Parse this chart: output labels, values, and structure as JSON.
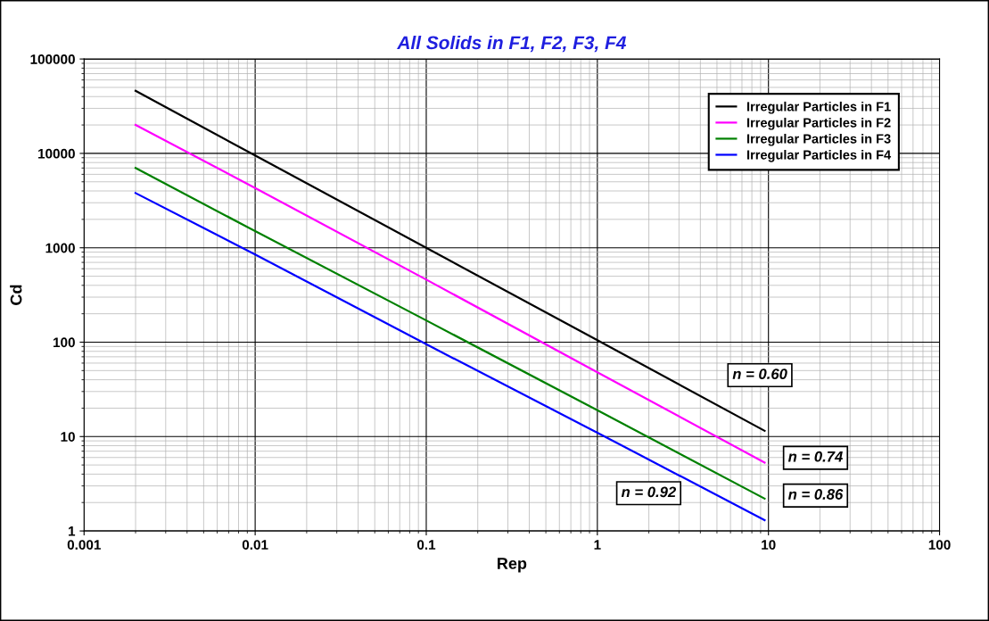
{
  "chart_data": {
    "type": "line",
    "title": "All Solids in F1, F2, F3, F4",
    "xlabel": "Rep",
    "ylabel": "Cd",
    "log": "xy",
    "xlim": [
      0.001,
      100
    ],
    "ylim": [
      1,
      100000
    ],
    "xticks": [
      0.001,
      0.01,
      0.1,
      1,
      10,
      100
    ],
    "yticks": [
      1,
      10,
      100,
      1000,
      10000,
      100000
    ],
    "grid": true,
    "legend": "top right",
    "marker": "none",
    "line_style": "solid",
    "x": [
      0.002,
      0.01,
      0.1,
      1,
      9.5
    ],
    "series": [
      {
        "name": "Irregular Particles in F1",
        "color": "#000000",
        "values": [
          46000,
          9500,
          1000,
          105,
          11.5
        ]
      },
      {
        "name": "Irregular Particles in F2",
        "color": "#ff00ff",
        "values": [
          20000,
          4300,
          460,
          48,
          5.3
        ]
      },
      {
        "name": "Irregular Particles in F3",
        "color": "#008000",
        "values": [
          7000,
          1500,
          170,
          19,
          2.2
        ]
      },
      {
        "name": "Irregular Particles in F4",
        "color": "#0000ff",
        "values": [
          3800,
          850,
          95,
          11,
          1.3
        ]
      }
    ],
    "annotations": [
      "n = 0.60",
      "n = 0.74",
      "n = 0.86",
      "n = 0.92"
    ]
  }
}
